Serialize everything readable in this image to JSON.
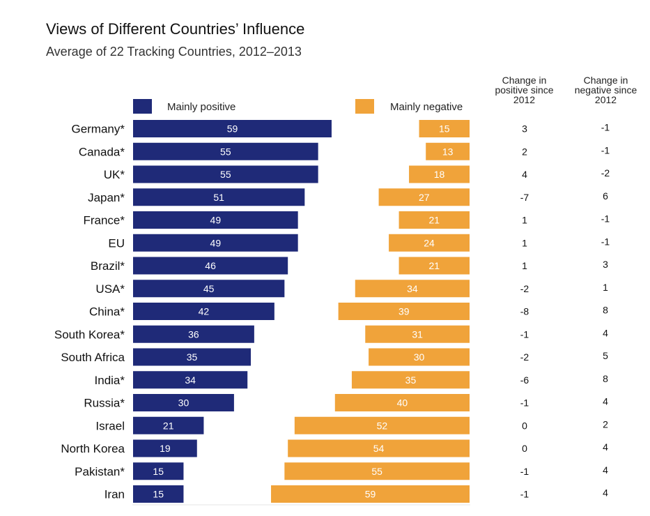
{
  "title": "Views of Different Countries’ Influence",
  "subtitle": "Average of 22 Tracking Countries, 2012–2013",
  "headers": {
    "change_positive": "Change in positive since 2012",
    "change_negative": "Change in negative since 2012"
  },
  "colors": {
    "positive": "#1f2a78",
    "negative": "#f0a33a",
    "bar_label": "#ffffff"
  },
  "chart_data": {
    "type": "bar",
    "categories": [
      "Germany*",
      "Canada*",
      "UK*",
      "Japan*",
      "France*",
      "EU",
      "Brazil*",
      "USA*",
      "China*",
      "South Korea*",
      "South Africa",
      "India*",
      "Russia*",
      "Israel",
      "North Korea",
      "Pakistan*",
      "Iran"
    ],
    "series": [
      {
        "name": "Mainly positive",
        "values": [
          59,
          55,
          55,
          51,
          49,
          49,
          46,
          45,
          42,
          36,
          35,
          34,
          30,
          21,
          19,
          15,
          15
        ]
      },
      {
        "name": "Mainly negative",
        "values": [
          15,
          13,
          18,
          27,
          21,
          24,
          21,
          34,
          39,
          31,
          30,
          35,
          40,
          52,
          54,
          55,
          59
        ]
      }
    ],
    "change_positive": [
      "3",
      "2",
      "4",
      "-7",
      "1",
      "1",
      "1",
      "-2",
      "-8",
      "-1",
      "-2",
      "-6",
      "-1",
      "0",
      "0",
      "-1",
      "-1"
    ],
    "change_negative": [
      "-1",
      "-1",
      "-2",
      "6",
      "-1",
      "-1",
      "3",
      "1",
      "8",
      "4",
      "5",
      "8",
      "4",
      "2",
      "4",
      "4",
      "4"
    ]
  }
}
